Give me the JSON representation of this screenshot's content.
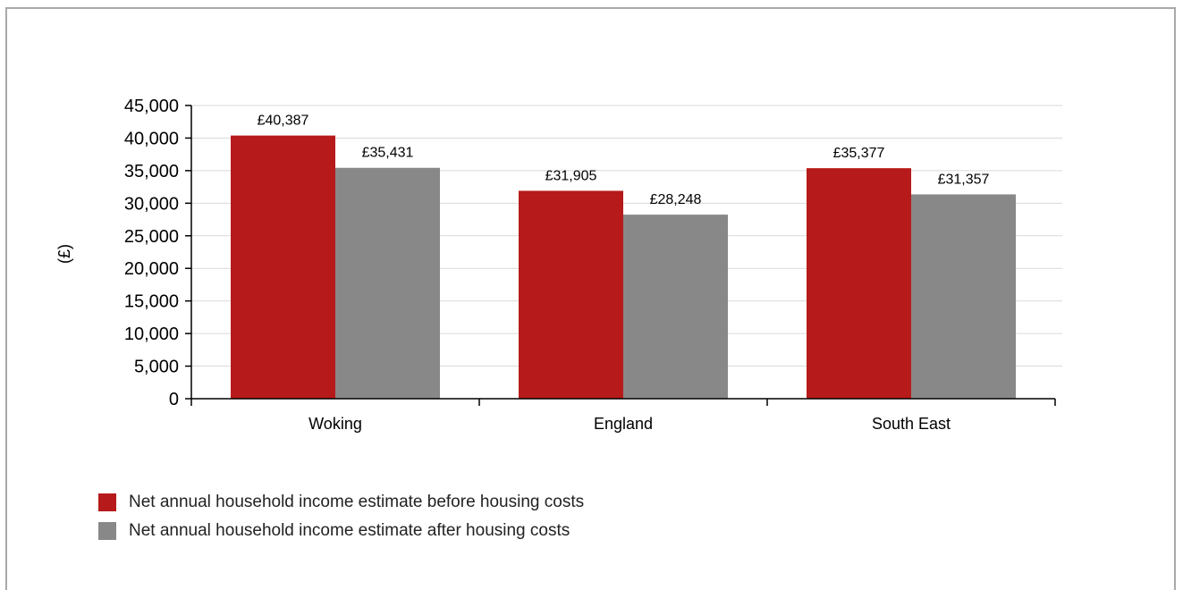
{
  "chart_data": {
    "type": "bar",
    "categories": [
      "Woking",
      "England",
      "South East"
    ],
    "series": [
      {
        "name": "Net annual household income estimate before housing costs",
        "values": [
          40387,
          31905,
          35377
        ],
        "labels": [
          "£40,387",
          "£31,905",
          "£35,377"
        ],
        "color": "#b71a1a"
      },
      {
        "name": "Net annual household income estimate after housing costs",
        "values": [
          35431,
          28248,
          31357
        ],
        "labels": [
          "£35,431",
          "£28,248",
          "£31,357"
        ],
        "color": "#888888"
      }
    ],
    "ylabel": "(£)",
    "ylim": [
      0,
      45000
    ],
    "yticks": [
      0,
      5000,
      10000,
      15000,
      20000,
      25000,
      30000,
      35000,
      40000,
      45000
    ],
    "ytick_labels": [
      "0",
      "5,000",
      "10,000",
      "15,000",
      "20,000",
      "25,000",
      "30,000",
      "35,000",
      "40,000",
      "45,000"
    ],
    "grid": true,
    "legend_position": "bottom-left"
  }
}
